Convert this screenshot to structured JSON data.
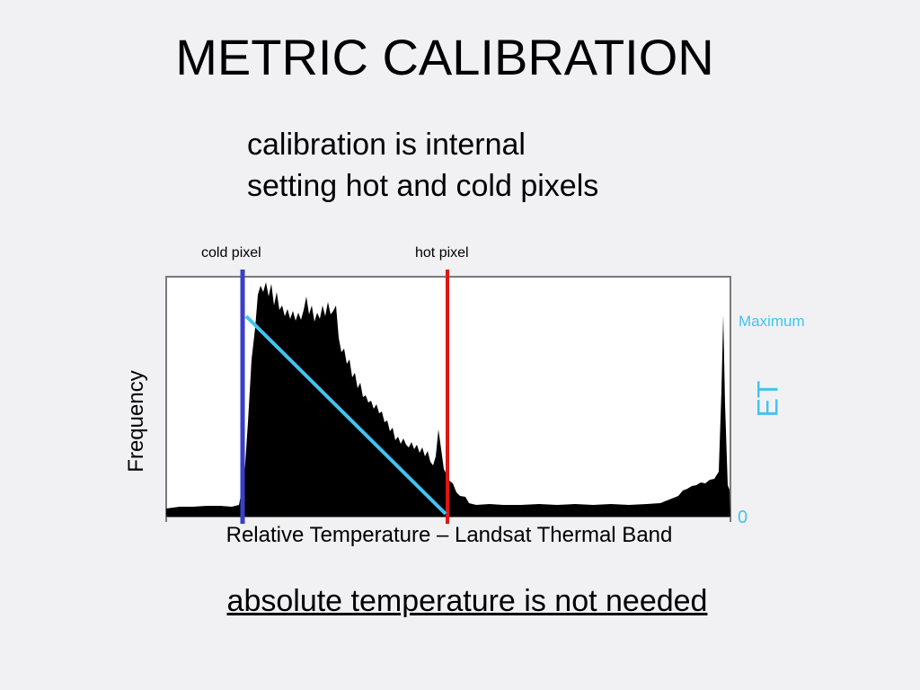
{
  "title": "METRIC CALIBRATION",
  "subtitle": {
    "line1": "calibration is internal",
    "line2": "setting hot and cold pixels"
  },
  "markers": {
    "cold_label": "cold pixel",
    "hot_label": "hot pixel"
  },
  "chart": {
    "xlabel": "Relative Temperature – Landsat Thermal Band",
    "ylabel": "Frequency",
    "et_label": "ET",
    "et_max_label": "Maximum",
    "et_zero_label": "0"
  },
  "footer": "absolute temperature is not needed",
  "colors": {
    "background": "#f1f1f3",
    "cold_line": "#3a3ec9",
    "hot_line": "#e01515",
    "et_line": "#42c3f2",
    "histogram": "#000000"
  }
}
